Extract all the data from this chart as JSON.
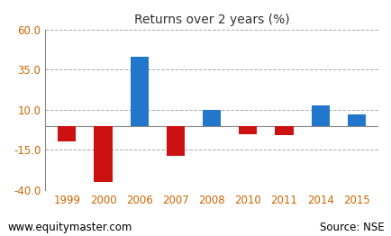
{
  "categories": [
    "1999",
    "2000",
    "2006",
    "2007",
    "2008",
    "2010",
    "2011",
    "2014",
    "2015"
  ],
  "values": [
    -10,
    -35,
    43,
    -19,
    10,
    -5,
    -6,
    13,
    7
  ],
  "colors": [
    "#cc1111",
    "#cc1111",
    "#2277cc",
    "#cc1111",
    "#2277cc",
    "#cc1111",
    "#cc1111",
    "#2277cc",
    "#2277cc"
  ],
  "title": "Returns over 2 years (%)",
  "ylim": [
    -40,
    60
  ],
  "yticks": [
    -40.0,
    -15.0,
    10.0,
    35.0,
    60.0
  ],
  "background_color": "#ffffff",
  "grid_color": "#aaaaaa",
  "tick_label_color": "#cc6600",
  "footer_left": "www.equitymaster.com",
  "footer_right": "Source: NSE",
  "title_fontsize": 10,
  "tick_fontsize": 8.5,
  "footer_fontsize": 8.5,
  "bar_width": 0.5,
  "spine_color": "#888888",
  "zero_line_color": "#888888"
}
